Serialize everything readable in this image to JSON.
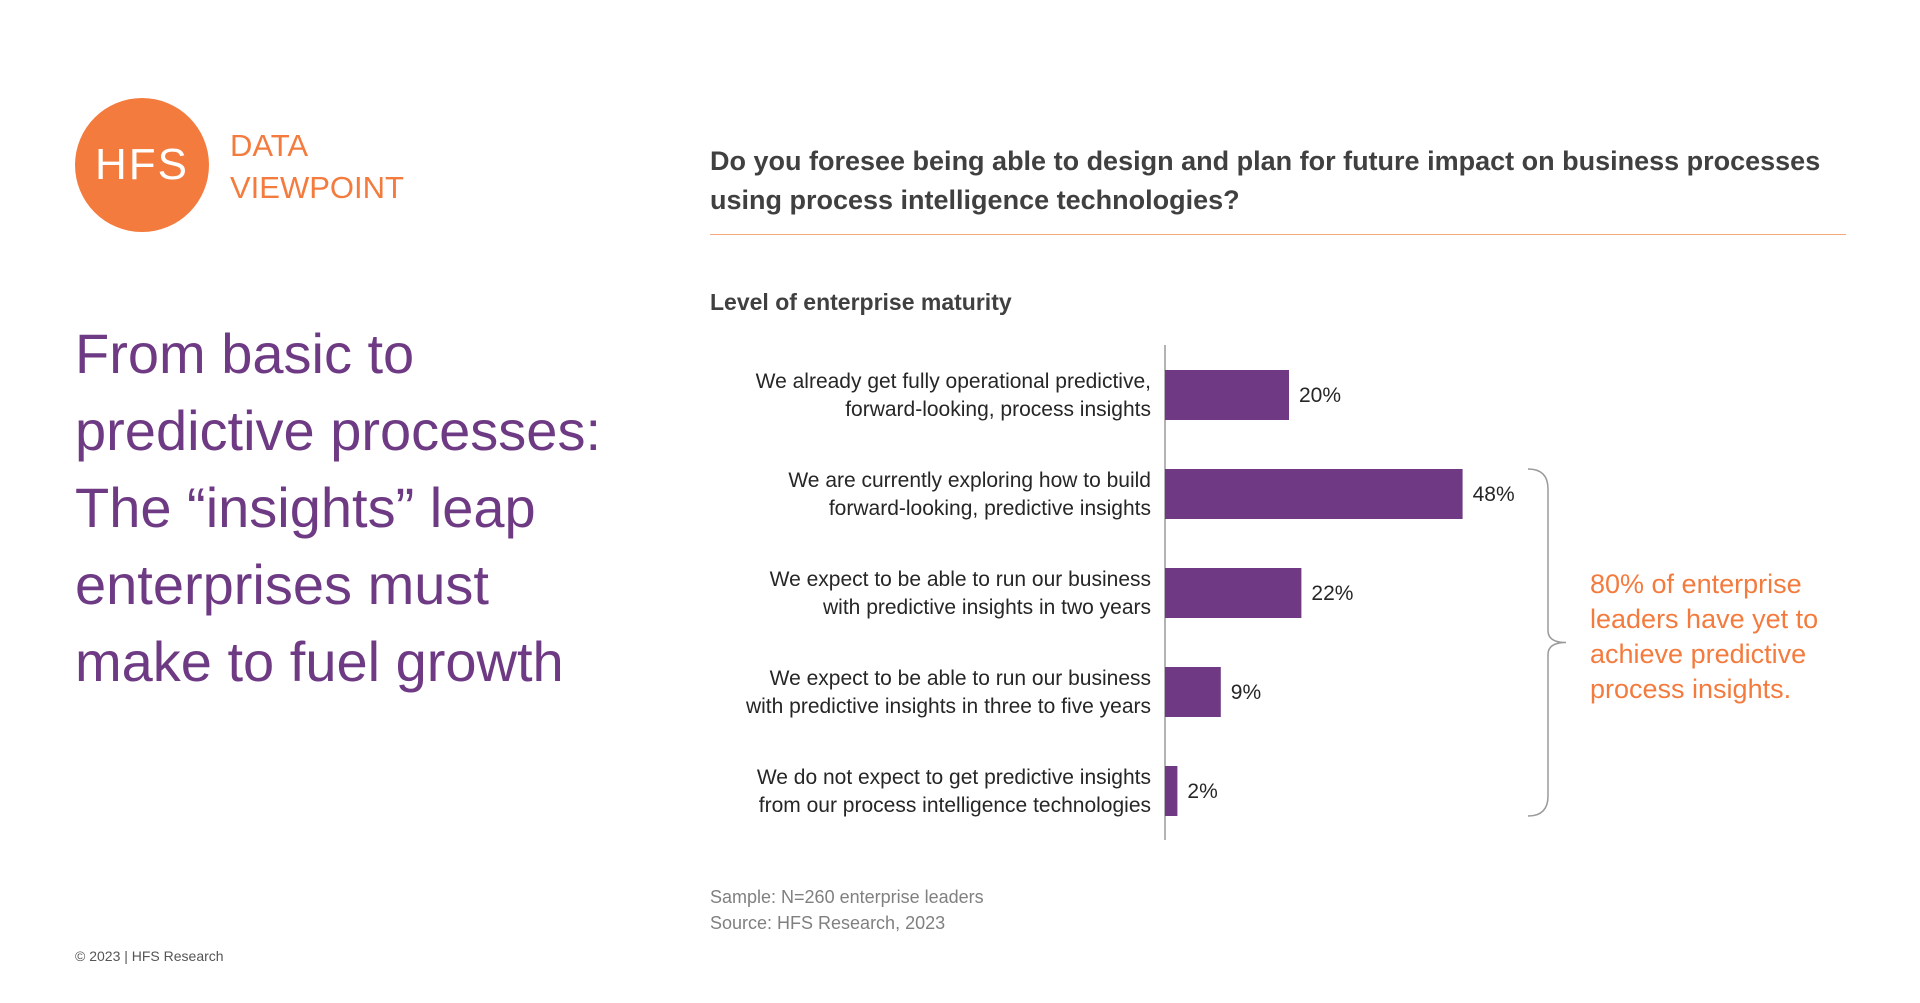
{
  "logo": {
    "text": "HFS",
    "sub_line1": "DATA",
    "sub_line2": "VIEWPOINT"
  },
  "headline": "From basic to predictive processes: The “insights” leap enterprises must make to fuel growth",
  "question": "Do you foresee being able to design and plan for future impact on business processes using process intelligence technologies?",
  "callout": "80% of enterprise leaders have yet to achieve predictive process insights.",
  "footnote": {
    "sample": "Sample: N=260 enterprise leaders",
    "source": "Source: HFS Research, 2023"
  },
  "copyright": "© 2023 | HFS Research",
  "colors": {
    "accent": "#F47B3E",
    "bar": "#6F3A83",
    "headline": "#6E3A84"
  },
  "chart_data": {
    "type": "bar",
    "orientation": "horizontal",
    "title": "Level of enterprise maturity",
    "categories": [
      [
        "We already get fully operational predictive,",
        "forward-looking, process insights"
      ],
      [
        "We are currently exploring how to build",
        "forward-looking, predictive insights"
      ],
      [
        "We expect to be able to run our business",
        "with predictive insights in two years"
      ],
      [
        "We expect to be able to run our business",
        "with predictive insights in three to five years"
      ],
      [
        "We do not expect to get predictive insights",
        "from our process intelligence technologies"
      ]
    ],
    "values": [
      20,
      48,
      22,
      9,
      2
    ],
    "value_labels": [
      "20%",
      "48%",
      "22%",
      "9%",
      "2%"
    ],
    "unit": "%",
    "xlim": [
      0,
      100
    ],
    "grid": false,
    "bracket": {
      "from_index": 1,
      "to_index": 4
    }
  }
}
